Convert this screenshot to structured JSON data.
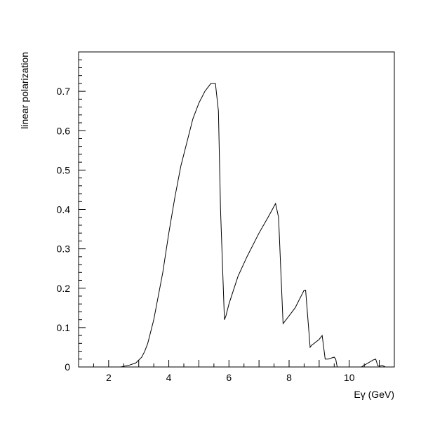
{
  "chart_data": {
    "type": "line",
    "title": "",
    "xlabel": "Eγ (GeV)",
    "ylabel": "linear polarization",
    "xlim": [
      1.0,
      11.5
    ],
    "ylim": [
      0.0,
      0.8
    ],
    "xticks": [
      2,
      4,
      6,
      8,
      10
    ],
    "xtick_labels": [
      "2",
      "4",
      "6",
      "8",
      "10"
    ],
    "yticks": [
      0,
      0.1,
      0.2,
      0.3,
      0.4,
      0.5,
      0.6,
      0.7
    ],
    "ytick_labels": [
      "0",
      "0.1",
      "0.2",
      "0.3",
      "0.4",
      "0.5",
      "0.6",
      "0.7"
    ],
    "grid": false,
    "legend": "none",
    "line_color": "#000000",
    "series": [
      {
        "x": [
          2.4,
          2.7,
          2.9,
          3.1,
          3.2,
          3.3,
          3.4,
          3.5,
          3.6,
          3.8,
          4.0,
          4.2,
          4.4,
          4.6,
          4.8,
          5.0,
          5.2,
          5.4,
          5.55,
          5.65,
          5.72,
          5.85,
          5.9,
          6.0,
          6.3,
          6.6,
          7.0,
          7.3,
          7.55,
          7.65,
          7.8,
          7.9,
          8.0,
          8.2,
          8.5,
          8.55,
          8.7,
          8.75,
          9.0,
          9.1,
          9.2,
          9.3,
          9.5,
          9.55,
          9.6,
          9.7,
          9.8,
          9.9,
          10.0,
          10.2,
          10.4,
          10.8,
          10.88,
          10.95,
          11.0,
          11.1,
          11.2,
          11.3
        ],
        "y": [
          0.0,
          0.005,
          0.01,
          0.025,
          0.04,
          0.06,
          0.09,
          0.12,
          0.16,
          0.24,
          0.34,
          0.43,
          0.51,
          0.57,
          0.63,
          0.67,
          0.7,
          0.72,
          0.72,
          0.65,
          0.4,
          0.12,
          0.13,
          0.16,
          0.23,
          0.28,
          0.34,
          0.38,
          0.415,
          0.38,
          0.11,
          0.12,
          0.13,
          0.15,
          0.195,
          0.195,
          0.05,
          0.055,
          0.07,
          0.08,
          0.02,
          0.02,
          0.025,
          0.02,
          0.0,
          0.0,
          0.0,
          0.0,
          0.0,
          0.0,
          0.0,
          0.018,
          0.02,
          0.003,
          0.002,
          0.004,
          0.0,
          0.0
        ]
      }
    ]
  }
}
